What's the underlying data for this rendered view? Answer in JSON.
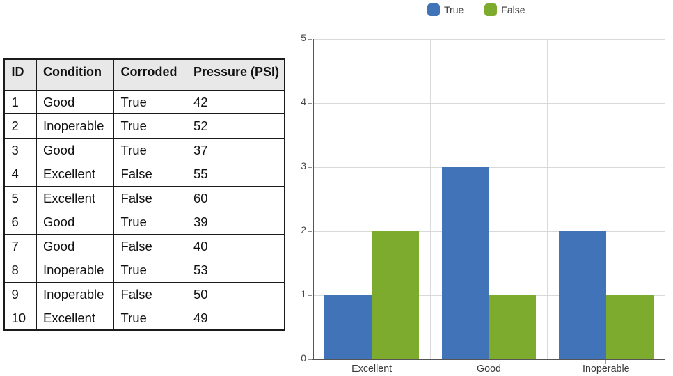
{
  "table": {
    "headers": [
      "ID",
      "Condition",
      "Corroded",
      "Pressure (PSI)"
    ],
    "rows": [
      [
        "1",
        "Good",
        "True",
        "42"
      ],
      [
        "2",
        "Inoperable",
        "True",
        "52"
      ],
      [
        "3",
        "Good",
        "True",
        "37"
      ],
      [
        "4",
        "Excellent",
        "False",
        "55"
      ],
      [
        "5",
        "Excellent",
        "False",
        "60"
      ],
      [
        "6",
        "Good",
        "True",
        "39"
      ],
      [
        "7",
        "Good",
        "False",
        "40"
      ],
      [
        "8",
        "Inoperable",
        "True",
        "53"
      ],
      [
        "9",
        "Inoperable",
        "False",
        "50"
      ],
      [
        "10",
        "Excellent",
        "True",
        "49"
      ]
    ]
  },
  "chart_data": {
    "type": "bar",
    "categories": [
      "Excellent",
      "Good",
      "Inoperable"
    ],
    "series": [
      {
        "name": "True",
        "color": "#4173b8",
        "values": [
          1,
          3,
          2
        ]
      },
      {
        "name": "False",
        "color": "#7cab2e",
        "values": [
          2,
          1,
          1
        ]
      }
    ],
    "title": "",
    "xlabel": "",
    "ylabel": "",
    "ylim": [
      0,
      5
    ],
    "yticks": [
      0,
      1,
      2,
      3,
      4,
      5
    ],
    "grid": true,
    "legend_position": "top"
  },
  "colors": {
    "true_series": "#4173b8",
    "false_series": "#7cab2e",
    "table_header_bg": "#e8e8e8",
    "table_border": "#1b1b1b",
    "gridline": "#d9d9d9",
    "axis_line": "#545454"
  }
}
